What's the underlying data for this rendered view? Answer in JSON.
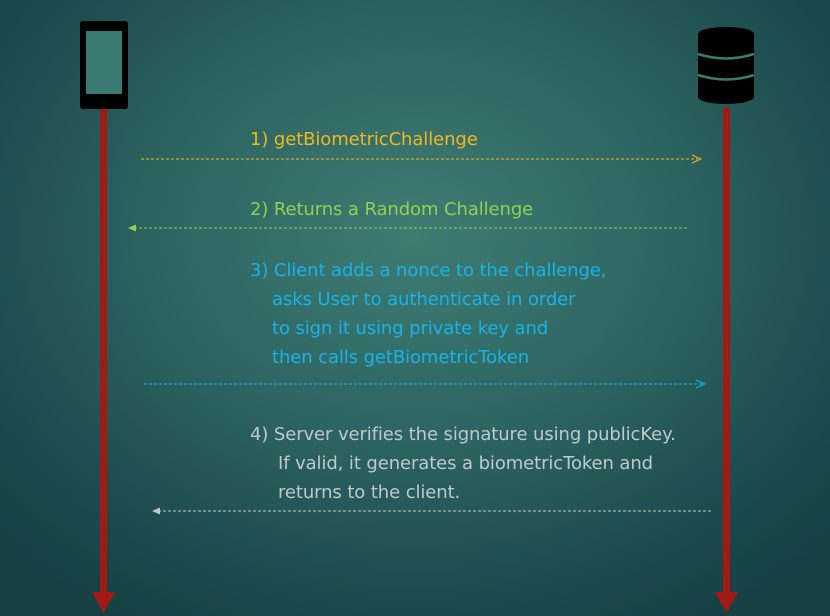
{
  "actors": {
    "client": {
      "icon": "smartphone-icon"
    },
    "server": {
      "icon": "database-icon"
    }
  },
  "colors": {
    "lifeline": "#a11a16",
    "actor_icon": "#000000",
    "step1": "#f0b722",
    "step2": "#92d050",
    "step3": "#18b3ea",
    "step4": "#bfc9c9"
  },
  "messages": [
    {
      "id": "step-1",
      "direction": "client-to-server",
      "lines": [
        "1) getBiometricChallenge"
      ]
    },
    {
      "id": "step-2",
      "direction": "server-to-client",
      "lines": [
        "2) Returns a Random Challenge"
      ]
    },
    {
      "id": "step-3",
      "direction": "client-to-server",
      "lines": [
        "3) Client adds a nonce to the challenge,",
        "asks User to authenticate in order",
        "to sign it using private key and",
        "then calls getBiometricToken"
      ]
    },
    {
      "id": "step-4",
      "direction": "server-to-client",
      "lines": [
        "4) Server verifies the signature using publicKey.",
        "If valid, it generates a biometricToken and",
        "returns to the client."
      ]
    }
  ]
}
